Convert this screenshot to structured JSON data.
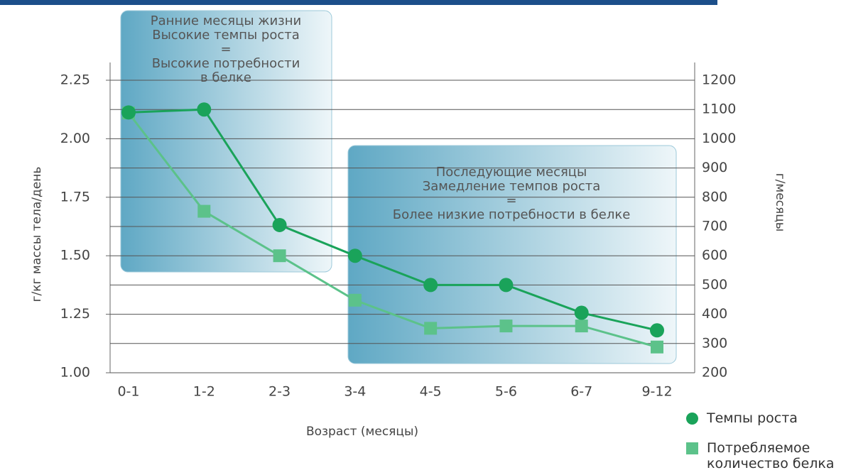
{
  "chart_data": {
    "type": "line",
    "xlabel": "Возраст (месяцы)",
    "ylabel": "г/кг массы тела/день",
    "y2label": "г/месяцы",
    "categories": [
      "0-1",
      "1-2",
      "2-3",
      "3-4",
      "4-5",
      "5-6",
      "6-7",
      "9-12"
    ],
    "series": [
      {
        "name": "Темпы роста",
        "color": "#1aa35a",
        "marker": "circle",
        "axis": "y2",
        "values": [
          1090,
          1100,
          705,
          600,
          500,
          500,
          405,
          345
        ]
      },
      {
        "name": "Потребляемое количество белка",
        "color": "#5cc28a",
        "marker": "square",
        "values": [
          2.11,
          1.69,
          1.5,
          1.31,
          1.19,
          1.2,
          1.2,
          1.11
        ]
      }
    ],
    "ylim": [
      1,
      2.25
    ],
    "yticks": [
      {
        "value": 1,
        "label": "1.00"
      },
      1.25,
      {
        "value": 1.5,
        "label": "1.50"
      },
      1.75,
      {
        "value": 2,
        "label": "2.00"
      },
      2.25
    ],
    "y2lim": [
      200,
      1200
    ],
    "y2ticks": [
      200,
      300,
      400,
      500,
      600,
      700,
      800,
      900,
      1000,
      1100,
      1200
    ],
    "annotations": [
      {
        "lines": [
          "Ранние месяцы жизни",
          "Высокие темпы роста",
          "=",
          "Высокие потребности",
          "в белке"
        ]
      },
      {
        "lines": [
          "Последующие месяцы",
          "Замедление темпов роста",
          "=",
          "Более низкие потребности в белке"
        ]
      }
    ]
  }
}
